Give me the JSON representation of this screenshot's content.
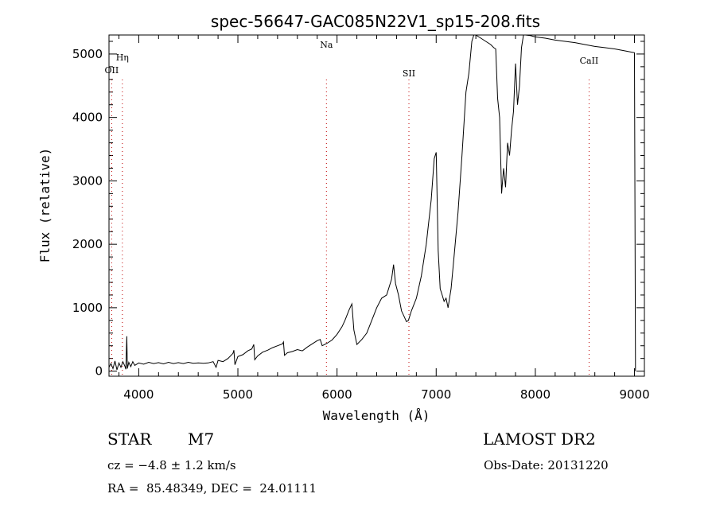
{
  "chart_data": {
    "type": "line",
    "title": "spec-56647-GAC085N22V1_sp15-208.fits",
    "xlabel": "Wavelength (Å)",
    "ylabel": "Flux (relative)",
    "xlim": [
      3700,
      9100
    ],
    "ylim": [
      -80,
      5300
    ],
    "xticks": [
      4000,
      5000,
      6000,
      7000,
      8000,
      9000
    ],
    "yticks": [
      0,
      1000,
      2000,
      3000,
      4000,
      5000
    ],
    "grid": false,
    "series": [
      {
        "points": [
          [
            3700,
            60
          ],
          [
            3720,
            120
          ],
          [
            3740,
            40
          ],
          [
            3760,
            160
          ],
          [
            3780,
            20
          ],
          [
            3800,
            130
          ],
          [
            3820,
            60
          ],
          [
            3840,
            150
          ],
          [
            3860,
            80
          ],
          [
            3870,
            30
          ],
          [
            3880,
            550
          ],
          [
            3885,
            40
          ],
          [
            3900,
            140
          ],
          [
            3920,
            70
          ],
          [
            3940,
            150
          ],
          [
            3960,
            90
          ],
          [
            4000,
            130
          ],
          [
            4050,
            110
          ],
          [
            4100,
            140
          ],
          [
            4150,
            120
          ],
          [
            4200,
            135
          ],
          [
            4250,
            115
          ],
          [
            4300,
            140
          ],
          [
            4350,
            120
          ],
          [
            4400,
            135
          ],
          [
            4450,
            120
          ],
          [
            4500,
            140
          ],
          [
            4550,
            125
          ],
          [
            4600,
            130
          ],
          [
            4650,
            125
          ],
          [
            4700,
            130
          ],
          [
            4750,
            150
          ],
          [
            4780,
            60
          ],
          [
            4800,
            170
          ],
          [
            4850,
            150
          ],
          [
            4900,
            200
          ],
          [
            4950,
            280
          ],
          [
            4960,
            330
          ],
          [
            4970,
            100
          ],
          [
            5000,
            230
          ],
          [
            5050,
            260
          ],
          [
            5100,
            320
          ],
          [
            5140,
            350
          ],
          [
            5160,
            420
          ],
          [
            5170,
            180
          ],
          [
            5200,
            240
          ],
          [
            5250,
            300
          ],
          [
            5300,
            330
          ],
          [
            5350,
            370
          ],
          [
            5400,
            400
          ],
          [
            5450,
            430
          ],
          [
            5460,
            460
          ],
          [
            5470,
            250
          ],
          [
            5500,
            290
          ],
          [
            5550,
            310
          ],
          [
            5600,
            340
          ],
          [
            5650,
            320
          ],
          [
            5700,
            380
          ],
          [
            5750,
            430
          ],
          [
            5800,
            480
          ],
          [
            5830,
            500
          ],
          [
            5850,
            400
          ],
          [
            5900,
            440
          ],
          [
            5950,
            490
          ],
          [
            6000,
            580
          ],
          [
            6050,
            700
          ],
          [
            6080,
            800
          ],
          [
            6120,
            960
          ],
          [
            6150,
            1060
          ],
          [
            6170,
            650
          ],
          [
            6200,
            420
          ],
          [
            6250,
            500
          ],
          [
            6300,
            600
          ],
          [
            6350,
            800
          ],
          [
            6400,
            1000
          ],
          [
            6450,
            1150
          ],
          [
            6500,
            1200
          ],
          [
            6550,
            1450
          ],
          [
            6570,
            1680
          ],
          [
            6590,
            1380
          ],
          [
            6620,
            1200
          ],
          [
            6650,
            950
          ],
          [
            6680,
            850
          ],
          [
            6700,
            780
          ],
          [
            6720,
            800
          ],
          [
            6750,
            950
          ],
          [
            6800,
            1150
          ],
          [
            6850,
            1500
          ],
          [
            6900,
            2000
          ],
          [
            6950,
            2700
          ],
          [
            6980,
            3350
          ],
          [
            7000,
            3450
          ],
          [
            7020,
            1900
          ],
          [
            7040,
            1300
          ],
          [
            7060,
            1200
          ],
          [
            7080,
            1100
          ],
          [
            7100,
            1150
          ],
          [
            7120,
            1000
          ],
          [
            7150,
            1300
          ],
          [
            7180,
            1800
          ],
          [
            7220,
            2500
          ],
          [
            7260,
            3400
          ],
          [
            7300,
            4400
          ],
          [
            7330,
            4700
          ],
          [
            7360,
            5200
          ],
          [
            7380,
            5300
          ],
          [
            7400,
            5300
          ],
          [
            7450,
            5250
          ],
          [
            7500,
            5200
          ],
          [
            7550,
            5150
          ],
          [
            7580,
            5100
          ],
          [
            7600,
            5080
          ],
          [
            7620,
            4300
          ],
          [
            7640,
            4000
          ],
          [
            7660,
            2800
          ],
          [
            7680,
            3200
          ],
          [
            7700,
            2900
          ],
          [
            7720,
            3600
          ],
          [
            7740,
            3400
          ],
          [
            7760,
            3800
          ],
          [
            7780,
            4100
          ],
          [
            7800,
            4850
          ],
          [
            7820,
            4200
          ],
          [
            7840,
            4500
          ],
          [
            7860,
            5100
          ],
          [
            7880,
            5300
          ],
          [
            7900,
            5300
          ],
          [
            7950,
            5290
          ],
          [
            8000,
            5270
          ],
          [
            8100,
            5250
          ],
          [
            8200,
            5220
          ],
          [
            8300,
            5200
          ],
          [
            8400,
            5180
          ],
          [
            8500,
            5150
          ],
          [
            8600,
            5120
          ],
          [
            8700,
            5100
          ],
          [
            8800,
            5080
          ],
          [
            8900,
            5050
          ],
          [
            9000,
            5020
          ],
          [
            9010,
            0
          ]
        ]
      }
    ],
    "annotations": [
      {
        "text": "OII",
        "x": 3727
      },
      {
        "text": "Hη",
        "x": 3835
      },
      {
        "text": "Na",
        "x": 5893
      },
      {
        "text": "SII",
        "x": 6725
      },
      {
        "text": "CaII",
        "x": 8542
      }
    ]
  },
  "footer": {
    "object_type": "STAR",
    "subclass": "M7",
    "cz": "cz = −4.8 ± 1.2 km/s",
    "coords": "RA =  85.48349, DEC =  24.01111",
    "survey": "LAMOST DR2",
    "obs_date": "Obs-Date: 20131220"
  }
}
